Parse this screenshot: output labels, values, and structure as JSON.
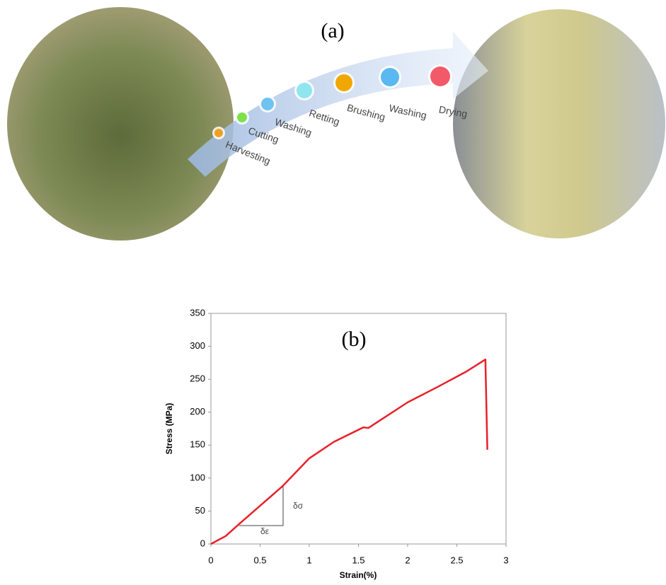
{
  "diagram": {
    "label": "(a)",
    "steps": [
      {
        "label": "Harvesting",
        "color": "#f0a020"
      },
      {
        "label": "Cutting",
        "color": "#7ee04a"
      },
      {
        "label": "Washing",
        "color": "#6fc3f0"
      },
      {
        "label": "Retting",
        "color": "#8fe6ef"
      },
      {
        "label": "Brushing",
        "color": "#f0a800"
      },
      {
        "label": "Washing",
        "color": "#5ab8f2"
      },
      {
        "label": "Drying",
        "color": "#f25a6a"
      }
    ]
  },
  "chart_data": {
    "type": "line",
    "label": "(b)",
    "x_label": "Strain(%)",
    "y_label": "Stress (MPa)",
    "x": [
      0,
      0.15,
      0.3,
      0.5,
      0.73,
      1,
      1.25,
      1.55,
      1.6,
      2,
      2.3,
      2.6,
      2.79,
      2.81
    ],
    "series": [
      {
        "color": "#e8202a",
        "values": [
          0,
          12,
          32,
          58,
          88,
          130,
          155,
          177,
          176,
          215,
          238,
          262,
          280,
          143
        ]
      }
    ],
    "xlim": [
      0,
      3
    ],
    "xticks": [
      0,
      0.5,
      1,
      1.5,
      2,
      2.5,
      3
    ],
    "ylim": [
      0,
      350
    ],
    "yticks": [
      0,
      50,
      100,
      150,
      200,
      250,
      300,
      350
    ],
    "annotations": [
      "δσ",
      "δε"
    ]
  }
}
